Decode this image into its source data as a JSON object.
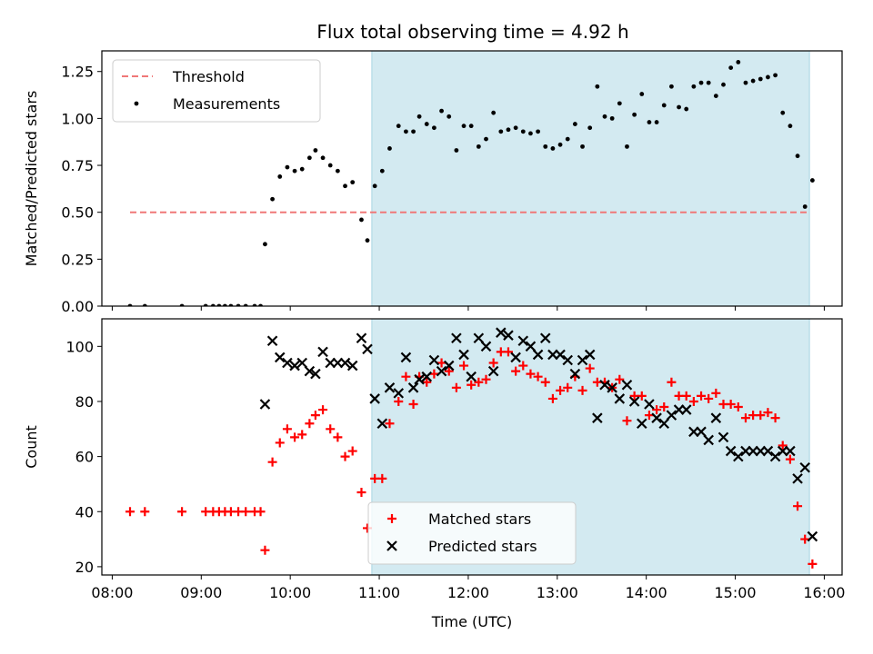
{
  "chart_data": [
    {
      "type": "scatter",
      "title": "Flux total observing time = 4.92 h",
      "xlabel": "",
      "ylabel": "Matched/Predicted stars",
      "xlim": [
        "07:53",
        "16:12"
      ],
      "ylim": [
        0,
        1.36
      ],
      "yticks": [
        "0.00",
        "0.25",
        "0.50",
        "0.75",
        "1.00",
        "1.25"
      ],
      "shaded_interval": [
        "10:55",
        "15:50"
      ],
      "shaded_color": "#d3eaf1",
      "legend": {
        "placement": "upper-left",
        "entries": [
          {
            "label": "Threshold",
            "marker": "dashed-line",
            "color": "#f07878"
          },
          {
            "label": "Measurements",
            "marker": "dot",
            "color": "#000000"
          }
        ]
      },
      "series": [
        {
          "name": "Threshold",
          "kind": "hline",
          "color": "#f07878",
          "y": 0.5,
          "x": [
            "08:12",
            "15:50"
          ]
        },
        {
          "name": "Measurements",
          "kind": "scatter",
          "color": "#000000",
          "points": [
            [
              "08:12",
              0.0
            ],
            [
              "08:22",
              0.0
            ],
            [
              "08:47",
              0.0
            ],
            [
              "09:03",
              0.0
            ],
            [
              "09:08",
              0.0
            ],
            [
              "09:12",
              0.0
            ],
            [
              "09:16",
              0.0
            ],
            [
              "09:20",
              0.0
            ],
            [
              "09:25",
              0.0
            ],
            [
              "09:30",
              0.0
            ],
            [
              "09:36",
              0.0
            ],
            [
              "09:40",
              0.0
            ],
            [
              "09:43",
              0.33
            ],
            [
              "09:48",
              0.57
            ],
            [
              "09:53",
              0.69
            ],
            [
              "09:58",
              0.74
            ],
            [
              "10:03",
              0.72
            ],
            [
              "10:08",
              0.73
            ],
            [
              "10:13",
              0.79
            ],
            [
              "10:17",
              0.83
            ],
            [
              "10:22",
              0.79
            ],
            [
              "10:27",
              0.75
            ],
            [
              "10:32",
              0.72
            ],
            [
              "10:37",
              0.64
            ],
            [
              "10:42",
              0.66
            ],
            [
              "10:48",
              0.46
            ],
            [
              "10:52",
              0.35
            ],
            [
              "10:57",
              0.64
            ],
            [
              "11:02",
              0.72
            ],
            [
              "11:07",
              0.84
            ],
            [
              "11:13",
              0.96
            ],
            [
              "11:18",
              0.93
            ],
            [
              "11:23",
              0.93
            ],
            [
              "11:27",
              1.01
            ],
            [
              "11:32",
              0.97
            ],
            [
              "11:37",
              0.95
            ],
            [
              "11:42",
              1.04
            ],
            [
              "11:47",
              1.01
            ],
            [
              "11:52",
              0.83
            ],
            [
              "11:57",
              0.96
            ],
            [
              "12:02",
              0.96
            ],
            [
              "12:07",
              0.85
            ],
            [
              "12:12",
              0.89
            ],
            [
              "12:17",
              1.03
            ],
            [
              "12:22",
              0.93
            ],
            [
              "12:27",
              0.94
            ],
            [
              "12:32",
              0.95
            ],
            [
              "12:37",
              0.93
            ],
            [
              "12:42",
              0.92
            ],
            [
              "12:47",
              0.93
            ],
            [
              "12:52",
              0.85
            ],
            [
              "12:57",
              0.84
            ],
            [
              "13:02",
              0.86
            ],
            [
              "13:07",
              0.89
            ],
            [
              "13:12",
              0.97
            ],
            [
              "13:17",
              0.85
            ],
            [
              "13:22",
              0.95
            ],
            [
              "13:27",
              1.17
            ],
            [
              "13:32",
              1.01
            ],
            [
              "13:37",
              1.0
            ],
            [
              "13:42",
              1.08
            ],
            [
              "13:47",
              0.85
            ],
            [
              "13:52",
              1.02
            ],
            [
              "13:57",
              1.13
            ],
            [
              "14:02",
              0.98
            ],
            [
              "14:07",
              0.98
            ],
            [
              "14:12",
              1.07
            ],
            [
              "14:17",
              1.17
            ],
            [
              "14:22",
              1.06
            ],
            [
              "14:27",
              1.05
            ],
            [
              "14:32",
              1.17
            ],
            [
              "14:37",
              1.19
            ],
            [
              "14:42",
              1.19
            ],
            [
              "14:47",
              1.12
            ],
            [
              "14:52",
              1.18
            ],
            [
              "14:57",
              1.27
            ],
            [
              "15:02",
              1.3
            ],
            [
              "15:07",
              1.19
            ],
            [
              "15:12",
              1.2
            ],
            [
              "15:17",
              1.21
            ],
            [
              "15:22",
              1.22
            ],
            [
              "15:27",
              1.23
            ],
            [
              "15:32",
              1.03
            ],
            [
              "15:37",
              0.96
            ],
            [
              "15:42",
              0.8
            ],
            [
              "15:47",
              0.53
            ],
            [
              "15:52",
              0.67
            ]
          ]
        }
      ]
    },
    {
      "type": "scatter",
      "title": "",
      "xlabel": "Time (UTC)",
      "ylabel": "Count",
      "xlim": [
        "07:53",
        "16:12"
      ],
      "ylim": [
        17,
        110
      ],
      "yticks": [
        "20",
        "40",
        "60",
        "80",
        "100"
      ],
      "xticks": [
        "08:00",
        "09:00",
        "10:00",
        "11:00",
        "12:00",
        "13:00",
        "14:00",
        "15:00",
        "16:00"
      ],
      "shaded_interval": [
        "10:55",
        "15:50"
      ],
      "shaded_color": "#d3eaf1",
      "legend": {
        "placement": "lower-center",
        "entries": [
          {
            "label": "Matched stars",
            "marker": "plus",
            "color": "#ff0000"
          },
          {
            "label": "Predicted stars",
            "marker": "cross",
            "color": "#000000"
          }
        ]
      },
      "series": [
        {
          "name": "Matched stars",
          "kind": "scatter",
          "marker": "plus",
          "color": "#ff0000",
          "points": [
            [
              "08:12",
              40
            ],
            [
              "08:22",
              40
            ],
            [
              "08:47",
              40
            ],
            [
              "09:03",
              40
            ],
            [
              "09:08",
              40
            ],
            [
              "09:12",
              40
            ],
            [
              "09:16",
              40
            ],
            [
              "09:20",
              40
            ],
            [
              "09:25",
              40
            ],
            [
              "09:30",
              40
            ],
            [
              "09:36",
              40
            ],
            [
              "09:40",
              40
            ],
            [
              "09:43",
              26
            ],
            [
              "09:48",
              58
            ],
            [
              "09:53",
              65
            ],
            [
              "09:58",
              70
            ],
            [
              "10:03",
              67
            ],
            [
              "10:08",
              68
            ],
            [
              "10:13",
              72
            ],
            [
              "10:17",
              75
            ],
            [
              "10:22",
              77
            ],
            [
              "10:27",
              70
            ],
            [
              "10:32",
              67
            ],
            [
              "10:37",
              60
            ],
            [
              "10:42",
              62
            ],
            [
              "10:48",
              47
            ],
            [
              "10:52",
              34
            ],
            [
              "10:57",
              52
            ],
            [
              "11:02",
              52
            ],
            [
              "11:07",
              72
            ],
            [
              "11:13",
              80
            ],
            [
              "11:18",
              89
            ],
            [
              "11:23",
              79
            ],
            [
              "11:27",
              89
            ],
            [
              "11:32",
              87
            ],
            [
              "11:37",
              90
            ],
            [
              "11:42",
              94
            ],
            [
              "11:47",
              91
            ],
            [
              "11:52",
              85
            ],
            [
              "11:57",
              93
            ],
            [
              "12:02",
              86
            ],
            [
              "12:07",
              87
            ],
            [
              "12:12",
              88
            ],
            [
              "12:17",
              94
            ],
            [
              "12:22",
              98
            ],
            [
              "12:27",
              98
            ],
            [
              "12:32",
              91
            ],
            [
              "12:37",
              93
            ],
            [
              "12:42",
              90
            ],
            [
              "12:47",
              89
            ],
            [
              "12:52",
              87
            ],
            [
              "12:57",
              81
            ],
            [
              "13:02",
              84
            ],
            [
              "13:07",
              85
            ],
            [
              "13:12",
              89
            ],
            [
              "13:17",
              84
            ],
            [
              "13:22",
              92
            ],
            [
              "13:27",
              87
            ],
            [
              "13:32",
              87
            ],
            [
              "13:37",
              85
            ],
            [
              "13:42",
              88
            ],
            [
              "13:47",
              73
            ],
            [
              "13:52",
              82
            ],
            [
              "13:57",
              82
            ],
            [
              "14:02",
              75
            ],
            [
              "14:07",
              77
            ],
            [
              "14:12",
              78
            ],
            [
              "14:17",
              87
            ],
            [
              "14:22",
              82
            ],
            [
              "14:27",
              82
            ],
            [
              "14:32",
              80
            ],
            [
              "14:37",
              82
            ],
            [
              "14:42",
              81
            ],
            [
              "14:47",
              83
            ],
            [
              "14:52",
              79
            ],
            [
              "14:57",
              79
            ],
            [
              "15:02",
              78
            ],
            [
              "15:07",
              74
            ],
            [
              "15:12",
              75
            ],
            [
              "15:17",
              75
            ],
            [
              "15:22",
              76
            ],
            [
              "15:27",
              74
            ],
            [
              "15:32",
              64
            ],
            [
              "15:37",
              59
            ],
            [
              "15:42",
              42
            ],
            [
              "15:47",
              30
            ],
            [
              "15:52",
              21
            ]
          ]
        },
        {
          "name": "Predicted stars",
          "kind": "scatter",
          "marker": "cross",
          "color": "#000000",
          "points": [
            [
              "09:43",
              79
            ],
            [
              "09:48",
              102
            ],
            [
              "09:53",
              96
            ],
            [
              "09:58",
              94
            ],
            [
              "10:03",
              93
            ],
            [
              "10:08",
              94
            ],
            [
              "10:13",
              91
            ],
            [
              "10:17",
              90
            ],
            [
              "10:22",
              98
            ],
            [
              "10:27",
              94
            ],
            [
              "10:32",
              94
            ],
            [
              "10:37",
              94
            ],
            [
              "10:42",
              93
            ],
            [
              "10:48",
              103
            ],
            [
              "10:52",
              99
            ],
            [
              "10:57",
              81
            ],
            [
              "11:02",
              72
            ],
            [
              "11:07",
              85
            ],
            [
              "11:13",
              83
            ],
            [
              "11:18",
              96
            ],
            [
              "11:23",
              85
            ],
            [
              "11:27",
              88
            ],
            [
              "11:32",
              89
            ],
            [
              "11:37",
              95
            ],
            [
              "11:42",
              91
            ],
            [
              "11:47",
              93
            ],
            [
              "11:52",
              103
            ],
            [
              "11:57",
              97
            ],
            [
              "12:02",
              89
            ],
            [
              "12:07",
              103
            ],
            [
              "12:12",
              100
            ],
            [
              "12:17",
              91
            ],
            [
              "12:22",
              105
            ],
            [
              "12:27",
              104
            ],
            [
              "12:32",
              96
            ],
            [
              "12:37",
              102
            ],
            [
              "12:42",
              100
            ],
            [
              "12:47",
              97
            ],
            [
              "12:52",
              103
            ],
            [
              "12:57",
              97
            ],
            [
              "13:02",
              97
            ],
            [
              "13:07",
              95
            ],
            [
              "13:12",
              90
            ],
            [
              "13:17",
              95
            ],
            [
              "13:22",
              97
            ],
            [
              "13:27",
              74
            ],
            [
              "13:32",
              86
            ],
            [
              "13:37",
              85
            ],
            [
              "13:42",
              81
            ],
            [
              "13:47",
              86
            ],
            [
              "13:52",
              80
            ],
            [
              "13:57",
              72
            ],
            [
              "14:02",
              79
            ],
            [
              "14:07",
              74
            ],
            [
              "14:12",
              72
            ],
            [
              "14:17",
              75
            ],
            [
              "14:22",
              77
            ],
            [
              "14:27",
              77
            ],
            [
              "14:32",
              69
            ],
            [
              "14:37",
              69
            ],
            [
              "14:42",
              66
            ],
            [
              "14:47",
              74
            ],
            [
              "14:52",
              67
            ],
            [
              "14:57",
              62
            ],
            [
              "15:02",
              60
            ],
            [
              "15:07",
              62
            ],
            [
              "15:12",
              62
            ],
            [
              "15:17",
              62
            ],
            [
              "15:22",
              62
            ],
            [
              "15:27",
              60
            ],
            [
              "15:32",
              62
            ],
            [
              "15:37",
              62
            ],
            [
              "15:42",
              52
            ],
            [
              "15:47",
              56
            ],
            [
              "15:52",
              31
            ]
          ]
        }
      ]
    }
  ]
}
